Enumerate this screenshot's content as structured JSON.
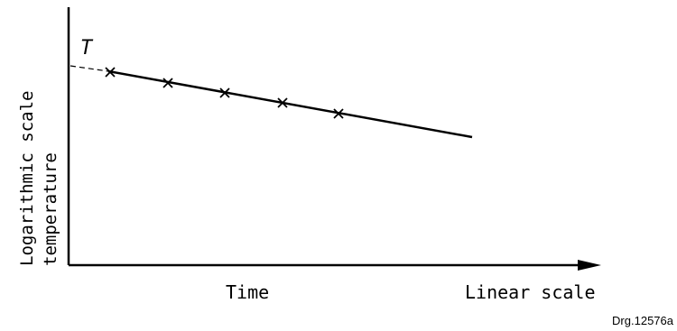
{
  "labels": {
    "y_axis_line1": "Logarithmic scale",
    "y_axis_line2": "temperature",
    "x_axis_time": "Time",
    "x_axis_scale": "Linear scale",
    "intercept": "T",
    "drawing_ref": "Drg.12576a"
  },
  "measurements": {
    "marker": "x",
    "count": 5
  },
  "style": {
    "ink": "#000000",
    "background": "#ffffff"
  }
}
